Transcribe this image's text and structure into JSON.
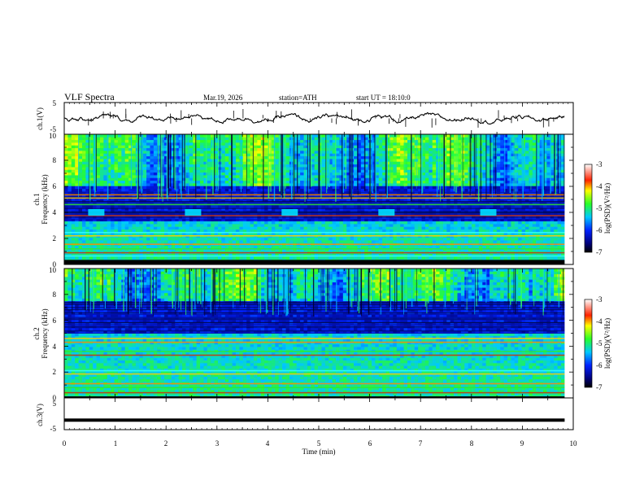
{
  "chart_data": {
    "type": "heatmap",
    "header": {
      "title": "VLF Spectra",
      "date": "Mar.19, 2026",
      "station": "station=ATH",
      "start_time": "start UT =  18:10:0"
    },
    "xaxis": {
      "label": "Time (min)",
      "range": [
        0,
        10
      ],
      "ticks": [
        0,
        1,
        2,
        3,
        4,
        5,
        6,
        7,
        8,
        9,
        10
      ],
      "tick_labels": [
        "0",
        "1",
        "2",
        "3",
        "4",
        "5",
        "6",
        "7",
        "8",
        "9",
        "10"
      ],
      "data_end": 9.83
    },
    "waveform_ch1": {
      "ylabel": "ch.1(V)",
      "ylim": [
        -5,
        5
      ],
      "tick_labels": [
        "5",
        "-5"
      ],
      "mean_level": 0
    },
    "spectrogram_ch1": {
      "ylabel_line1": "ch.1",
      "ylabel_line2": "Frequency (kHz)",
      "ylim_khz": [
        0,
        10
      ],
      "tick_labels": [
        "0",
        "2",
        "4",
        "6",
        "8",
        "10"
      ],
      "features": {
        "quiet_band_khz": [
          3.3,
          6.0
        ],
        "tones_khz": [
          5.1,
          5.35,
          4.6,
          3.75,
          2.45,
          2.2,
          1.55,
          1.2,
          0.9,
          0.65
        ],
        "burst_center_khz": 4.0,
        "burst_times_min": [
          0.63,
          2.53,
          4.43,
          6.33,
          8.33
        ],
        "bottom_band_khz": [
          0.0,
          0.35
        ]
      },
      "colorbar": {
        "label": "log(PSD)(V²/Hz)",
        "range": [
          -7,
          -3
        ],
        "tick_labels": [
          "-3",
          "-4",
          "-5",
          "-6",
          "-7"
        ]
      }
    },
    "spectrogram_ch2": {
      "ylabel_line1": "ch.2",
      "ylabel_line2": "Frequency (kHz)",
      "ylim_khz": [
        0,
        10
      ],
      "tick_labels": [
        "0",
        "2",
        "4",
        "6",
        "8",
        "10"
      ],
      "features": {
        "quiet_band_khz": [
          5.0,
          7.5
        ],
        "tones_khz": [
          4.6,
          4.3,
          3.6,
          3.3,
          2.1,
          1.85,
          1.1,
          0.8,
          0.4
        ],
        "bottom_band_khz": [
          0.0,
          0.12
        ]
      },
      "colorbar": {
        "label": "log(PSD)(V²/Hz)",
        "range": [
          -7,
          -3
        ],
        "tick_labels": [
          "-3",
          "-4",
          "-5",
          "-6",
          "-7"
        ]
      }
    },
    "waveform_ch3": {
      "ylabel": "ch.3(V)",
      "ylim": [
        -5,
        5
      ],
      "tick_labels": [
        "5",
        "-5"
      ],
      "level": -2
    }
  }
}
